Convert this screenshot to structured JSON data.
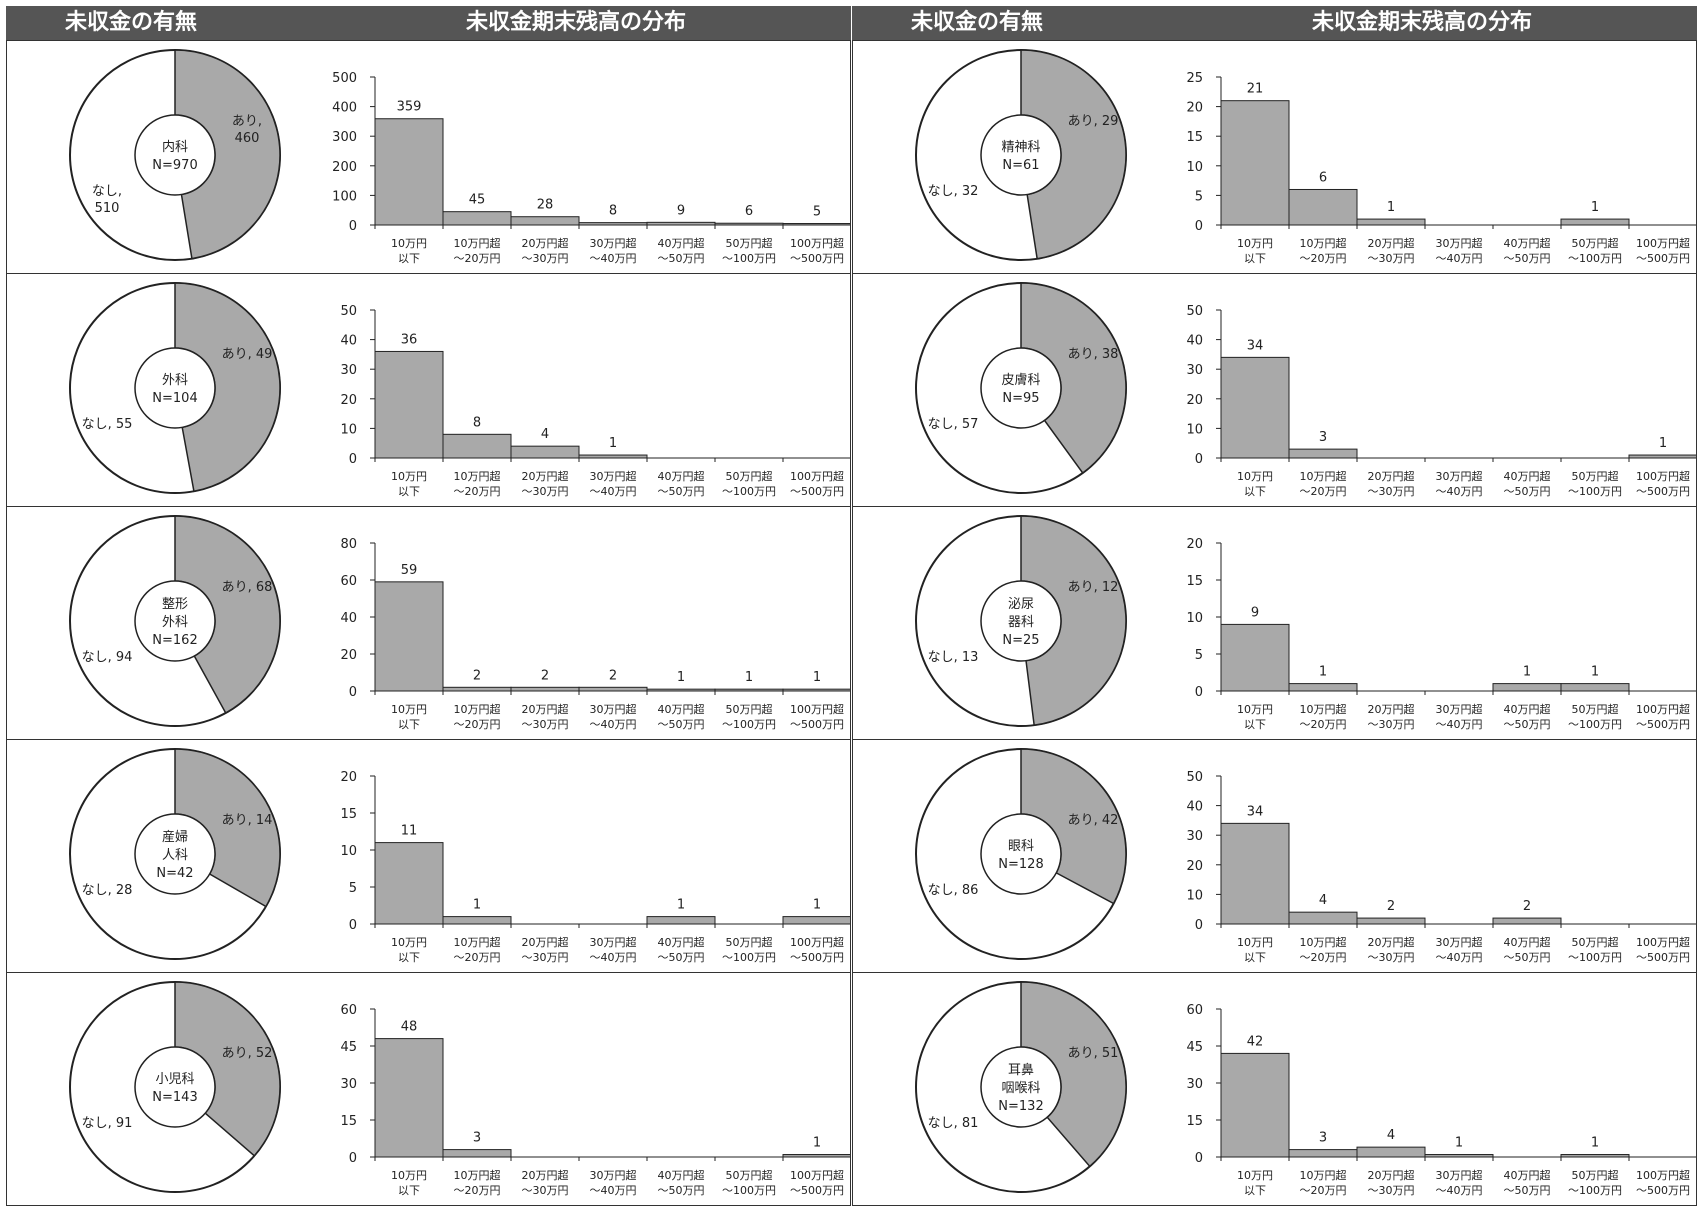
{
  "headers": {
    "donut": "未収金の有無",
    "bars": "未収金期末残高の分布"
  },
  "colors": {
    "fill": "#a9a9a9",
    "stroke": "#222222",
    "background": "#ffffff"
  },
  "categories": [
    [
      "10万円",
      "以下"
    ],
    [
      "10万円超",
      "～20万円"
    ],
    [
      "20万円超",
      "～30万円"
    ],
    [
      "30万円超",
      "～40万円"
    ],
    [
      "40万円超",
      "～50万円"
    ],
    [
      "50万円超",
      "～100万円"
    ],
    [
      "100万円超",
      "～500万円"
    ]
  ],
  "chart_data": [
    {
      "type": "bar",
      "department": "内科",
      "ari": 460,
      "nashi": 510,
      "n": 970,
      "center_lines": [
        "内科",
        "N=970"
      ],
      "ari_label": "あり,\n460",
      "nashi_label": "なし,\n510",
      "values": [
        359,
        45,
        28,
        8,
        9,
        6,
        5
      ],
      "yticks": [
        0,
        100,
        200,
        300,
        400,
        500
      ],
      "ylim": [
        0,
        500
      ]
    },
    {
      "type": "bar",
      "department": "外科",
      "ari": 49,
      "nashi": 55,
      "n": 104,
      "center_lines": [
        "外科",
        "N=104"
      ],
      "ari_label": "あり, 49",
      "nashi_label": "なし, 55",
      "values": [
        36,
        8,
        4,
        1,
        null,
        null,
        null
      ],
      "yticks": [
        0,
        10,
        20,
        30,
        40,
        50
      ],
      "ylim": [
        0,
        50
      ]
    },
    {
      "type": "bar",
      "department": "整形外科",
      "ari": 68,
      "nashi": 94,
      "n": 162,
      "center_lines": [
        "整形",
        "外科",
        "N=162"
      ],
      "ari_label": "あり, 68",
      "nashi_label": "なし, 94",
      "values": [
        59,
        2,
        2,
        2,
        1,
        1,
        1
      ],
      "yticks": [
        0,
        20,
        40,
        60,
        80
      ],
      "ylim": [
        0,
        80
      ]
    },
    {
      "type": "bar",
      "department": "産婦人科",
      "ari": 14,
      "nashi": 28,
      "n": 42,
      "center_lines": [
        "産婦",
        "人科",
        "N=42"
      ],
      "ari_label": "あり, 14",
      "nashi_label": "なし, 28",
      "values": [
        11,
        1,
        null,
        null,
        1,
        null,
        1
      ],
      "yticks": [
        0,
        5,
        10,
        15,
        20
      ],
      "ylim": [
        0,
        20
      ]
    },
    {
      "type": "bar",
      "department": "小児科",
      "ari": 52,
      "nashi": 91,
      "n": 143,
      "center_lines": [
        "小児科",
        "N=143"
      ],
      "ari_label": "あり, 52",
      "nashi_label": "なし, 91",
      "values": [
        48,
        3,
        null,
        null,
        null,
        null,
        1
      ],
      "yticks": [
        0,
        15,
        30,
        45,
        60
      ],
      "ylim": [
        0,
        60
      ]
    },
    {
      "type": "bar",
      "department": "精神科",
      "ari": 29,
      "nashi": 32,
      "n": 61,
      "center_lines": [
        "精神科",
        "N=61"
      ],
      "ari_label": "あり, 29",
      "nashi_label": "なし, 32",
      "values": [
        21,
        6,
        1,
        null,
        null,
        1,
        null
      ],
      "yticks": [
        0,
        5,
        10,
        15,
        20,
        25
      ],
      "ylim": [
        0,
        25
      ]
    },
    {
      "type": "bar",
      "department": "皮膚科",
      "ari": 38,
      "nashi": 57,
      "n": 95,
      "center_lines": [
        "皮膚科",
        "N=95"
      ],
      "ari_label": "あり, 38",
      "nashi_label": "なし, 57",
      "values": [
        34,
        3,
        null,
        null,
        null,
        null,
        1
      ],
      "yticks": [
        0,
        10,
        20,
        30,
        40,
        50
      ],
      "ylim": [
        0,
        50
      ]
    },
    {
      "type": "bar",
      "department": "泌尿器科",
      "ari": 12,
      "nashi": 13,
      "n": 25,
      "center_lines": [
        "泌尿",
        "器科",
        "N=25"
      ],
      "ari_label": "あり, 12",
      "nashi_label": "なし, 13",
      "values": [
        9,
        1,
        null,
        null,
        1,
        1,
        null
      ],
      "yticks": [
        0,
        5,
        10,
        15,
        20
      ],
      "ylim": [
        0,
        20
      ]
    },
    {
      "type": "bar",
      "department": "眼科",
      "ari": 42,
      "nashi": 86,
      "n": 128,
      "center_lines": [
        "眼科",
        "N=128"
      ],
      "ari_label": "あり, 42",
      "nashi_label": "なし, 86",
      "values": [
        34,
        4,
        2,
        null,
        2,
        null,
        null
      ],
      "yticks": [
        0,
        10,
        20,
        30,
        40,
        50
      ],
      "ylim": [
        0,
        50
      ]
    },
    {
      "type": "bar",
      "department": "耳鼻咽喉科",
      "ari": 51,
      "nashi": 81,
      "n": 132,
      "center_lines": [
        "耳鼻",
        "咽喉科",
        "N=132"
      ],
      "ari_label": "あり, 51",
      "nashi_label": "なし, 81",
      "values": [
        42,
        3,
        4,
        1,
        null,
        1,
        null
      ],
      "yticks": [
        0,
        15,
        30,
        45,
        60
      ],
      "ylim": [
        0,
        60
      ]
    }
  ]
}
